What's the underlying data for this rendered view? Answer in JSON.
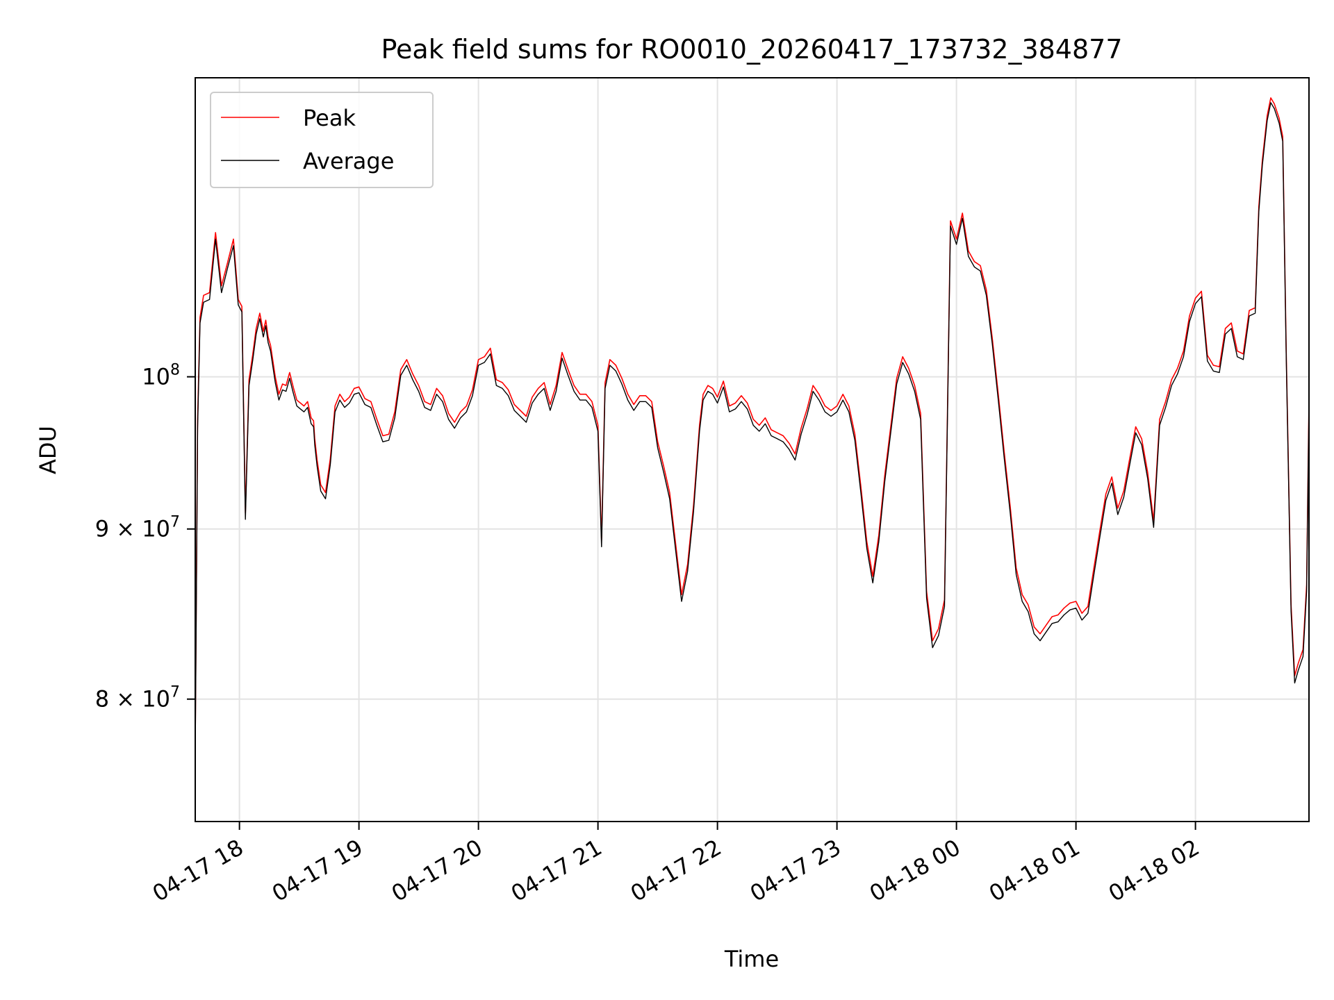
{
  "chart_data": {
    "type": "line",
    "title": "Peak field sums for RO0010_20260417_173732_384877",
    "xlabel": "Time",
    "ylabel": "ADU",
    "yscale": "log",
    "grid": true,
    "legend_position": "top-left",
    "xlim": [
      17.63,
      26.95
    ],
    "ylim": [
      73500000,
      123000000
    ],
    "x_ticks": [
      {
        "value": 18,
        "label": "04-17 18"
      },
      {
        "value": 19,
        "label": "04-17 19"
      },
      {
        "value": 20,
        "label": "04-17 20"
      },
      {
        "value": 21,
        "label": "04-17 21"
      },
      {
        "value": 22,
        "label": "04-17 22"
      },
      {
        "value": 23,
        "label": "04-17 23"
      },
      {
        "value": 24,
        "label": "04-18 00"
      },
      {
        "value": 25,
        "label": "04-18 01"
      },
      {
        "value": 26,
        "label": "04-18 02"
      }
    ],
    "y_ticks": [
      {
        "value": 80000000,
        "label": "8 × 10",
        "exp": "7"
      },
      {
        "value": 90000000,
        "label": "9 × 10",
        "exp": "7"
      },
      {
        "value": 100000000,
        "label": "10",
        "exp": "8"
      }
    ],
    "series": [
      {
        "name": "Peak",
        "color": "#ff0000",
        "x": [
          17.63,
          17.65,
          17.67,
          17.7,
          17.75,
          17.8,
          17.85,
          17.9,
          17.95,
          17.99,
          18.02,
          18.05,
          18.08,
          18.11,
          18.14,
          18.17,
          18.2,
          18.22,
          18.24,
          18.26,
          18.3,
          18.33,
          18.36,
          18.39,
          18.42,
          18.45,
          18.48,
          18.51,
          18.54,
          18.57,
          18.6,
          18.62,
          18.63,
          18.65,
          18.68,
          18.72,
          18.76,
          18.8,
          18.84,
          18.88,
          18.92,
          18.96,
          19.0,
          19.05,
          19.1,
          19.15,
          19.2,
          19.25,
          19.3,
          19.35,
          19.4,
          19.45,
          19.5,
          19.55,
          19.6,
          19.65,
          19.7,
          19.75,
          19.8,
          19.85,
          19.9,
          19.95,
          20.0,
          20.05,
          20.1,
          20.15,
          20.2,
          20.25,
          20.3,
          20.35,
          20.4,
          20.45,
          20.5,
          20.55,
          20.6,
          20.65,
          20.7,
          20.75,
          20.8,
          20.85,
          20.9,
          20.95,
          21.0,
          21.03,
          21.06,
          21.1,
          21.15,
          21.2,
          21.25,
          21.3,
          21.35,
          21.4,
          21.45,
          21.5,
          21.55,
          21.6,
          21.65,
          21.7,
          21.75,
          21.8,
          21.85,
          21.88,
          21.92,
          21.96,
          22.0,
          22.05,
          22.1,
          22.15,
          22.2,
          22.25,
          22.3,
          22.35,
          22.4,
          22.45,
          22.5,
          22.55,
          22.6,
          22.65,
          22.7,
          22.75,
          22.8,
          22.85,
          22.9,
          22.95,
          23.0,
          23.05,
          23.1,
          23.15,
          23.2,
          23.25,
          23.3,
          23.35,
          23.4,
          23.45,
          23.5,
          23.55,
          23.6,
          23.65,
          23.7,
          23.75,
          23.8,
          23.85,
          23.9,
          23.95,
          24.0,
          24.05,
          24.1,
          24.15,
          24.2,
          24.25,
          24.3,
          24.35,
          24.4,
          24.45,
          24.5,
          24.55,
          24.6,
          24.65,
          24.7,
          24.75,
          24.8,
          24.85,
          24.9,
          24.95,
          25.0,
          25.05,
          25.1,
          25.15,
          25.2,
          25.25,
          25.3,
          25.35,
          25.4,
          25.45,
          25.5,
          25.55,
          25.6,
          25.65,
          25.7,
          25.75,
          25.8,
          25.85,
          25.9,
          25.95,
          26.0,
          26.05,
          26.1,
          26.15,
          26.2,
          26.25,
          26.3,
          26.35,
          26.4,
          26.45,
          26.5,
          26.53,
          26.56,
          26.6,
          26.63,
          26.66,
          26.7,
          26.73,
          26.76,
          26.8,
          26.83,
          26.86,
          26.9,
          26.93,
          26.95
        ],
        "y": [
          77500000,
          97000000,
          104200000,
          105800000,
          106000000,
          110500000,
          106500000,
          108200000,
          110000000,
          105500000,
          105000000,
          91000000,
          99800000,
          101500000,
          103400000,
          104500000,
          103200000,
          104000000,
          102800000,
          102200000,
          100000000,
          98800000,
          99500000,
          99400000,
          100300000,
          99300000,
          98400000,
          98200000,
          98000000,
          98300000,
          97200000,
          97000000,
          95800000,
          94400000,
          92800000,
          92300000,
          94500000,
          98000000,
          98800000,
          98300000,
          98600000,
          99200000,
          99300000,
          98500000,
          98300000,
          97100000,
          96000000,
          96100000,
          97600000,
          100500000,
          101200000,
          100200000,
          99400000,
          98300000,
          98100000,
          99200000,
          98700000,
          97500000,
          96900000,
          97600000,
          98000000,
          99100000,
          101200000,
          101400000,
          102000000,
          99800000,
          99600000,
          99100000,
          98100000,
          97700000,
          97300000,
          98600000,
          99200000,
          99600000,
          98100000,
          99400000,
          101700000,
          100500000,
          99400000,
          98800000,
          98800000,
          98300000,
          96700000,
          89300000,
          99600000,
          101200000,
          100800000,
          99900000,
          98800000,
          98100000,
          98700000,
          98700000,
          98300000,
          95600000,
          94000000,
          92300000,
          89100000,
          86000000,
          87800000,
          91500000,
          96700000,
          98800000,
          99400000,
          99200000,
          98600000,
          99700000,
          98000000,
          98200000,
          98700000,
          98200000,
          97100000,
          96700000,
          97200000,
          96400000,
          96200000,
          96000000,
          95500000,
          94800000,
          96500000,
          97800000,
          99400000,
          98800000,
          98000000,
          97700000,
          98000000,
          98800000,
          98000000,
          96100000,
          92700000,
          89200000,
          87100000,
          89600000,
          93400000,
          96600000,
          99900000,
          101400000,
          100600000,
          99400000,
          97500000,
          86200000,
          83300000,
          84000000,
          85700000,
          111400000,
          110000000,
          112000000,
          109100000,
          108300000,
          108000000,
          106200000,
          102700000,
          98800000,
          94900000,
          91400000,
          87600000,
          86000000,
          85400000,
          84100000,
          83700000,
          84200000,
          84700000,
          84800000,
          85200000,
          85500000,
          85600000,
          84900000,
          85300000,
          87600000,
          89900000,
          92200000,
          93300000,
          91300000,
          92400000,
          94500000,
          96600000,
          95800000,
          93600000,
          90500000,
          97100000,
          98300000,
          99800000,
          100600000,
          101800000,
          104300000,
          105600000,
          106100000,
          101500000,
          100800000,
          100700000,
          103400000,
          103800000,
          101800000,
          101600000,
          104700000,
          104900000,
          112500000,
          116200000,
          119800000,
          121300000,
          120800000,
          119600000,
          118100000,
          101600000,
          85400000,
          81300000,
          82000000,
          82800000,
          86600000,
          98400000
        ]
      },
      {
        "name": "Average",
        "color": "#000000",
        "x": [
          17.63,
          17.65,
          17.67,
          17.7,
          17.75,
          17.8,
          17.85,
          17.9,
          17.95,
          17.99,
          18.02,
          18.05,
          18.08,
          18.11,
          18.14,
          18.17,
          18.2,
          18.22,
          18.24,
          18.26,
          18.3,
          18.33,
          18.36,
          18.39,
          18.42,
          18.45,
          18.48,
          18.51,
          18.54,
          18.57,
          18.6,
          18.62,
          18.63,
          18.65,
          18.68,
          18.72,
          18.76,
          18.8,
          18.84,
          18.88,
          18.92,
          18.96,
          19.0,
          19.05,
          19.1,
          19.15,
          19.2,
          19.25,
          19.3,
          19.35,
          19.4,
          19.45,
          19.5,
          19.55,
          19.6,
          19.65,
          19.7,
          19.75,
          19.8,
          19.85,
          19.9,
          19.95,
          20.0,
          20.05,
          20.1,
          20.15,
          20.2,
          20.25,
          20.3,
          20.35,
          20.4,
          20.45,
          20.5,
          20.55,
          20.6,
          20.65,
          20.7,
          20.75,
          20.8,
          20.85,
          20.9,
          20.95,
          21.0,
          21.03,
          21.06,
          21.1,
          21.15,
          21.2,
          21.25,
          21.3,
          21.35,
          21.4,
          21.45,
          21.5,
          21.55,
          21.6,
          21.65,
          21.7,
          21.75,
          21.8,
          21.85,
          21.88,
          21.92,
          21.96,
          22.0,
          22.05,
          22.1,
          22.15,
          22.2,
          22.25,
          22.3,
          22.35,
          22.4,
          22.45,
          22.5,
          22.55,
          22.6,
          22.65,
          22.7,
          22.75,
          22.8,
          22.85,
          22.9,
          22.95,
          23.0,
          23.05,
          23.1,
          23.15,
          23.2,
          23.25,
          23.3,
          23.35,
          23.4,
          23.45,
          23.5,
          23.55,
          23.6,
          23.65,
          23.7,
          23.75,
          23.8,
          23.85,
          23.9,
          23.95,
          24.0,
          24.05,
          24.1,
          24.15,
          24.2,
          24.25,
          24.3,
          24.35,
          24.4,
          24.45,
          24.5,
          24.55,
          24.6,
          24.65,
          24.7,
          24.75,
          24.8,
          24.85,
          24.9,
          24.95,
          25.0,
          25.05,
          25.1,
          25.15,
          25.2,
          25.25,
          25.3,
          25.35,
          25.4,
          25.45,
          25.5,
          25.55,
          25.6,
          25.65,
          25.7,
          25.75,
          25.8,
          25.85,
          25.9,
          25.95,
          26.0,
          26.05,
          26.1,
          26.15,
          26.2,
          26.25,
          26.3,
          26.35,
          26.4,
          26.45,
          26.5,
          26.53,
          26.56,
          26.6,
          26.63,
          26.66,
          26.7,
          26.73,
          26.76,
          26.8,
          26.83,
          26.86,
          26.9,
          26.93,
          26.95
        ],
        "y": [
          77000000,
          96500000,
          103800000,
          105300000,
          105500000,
          110000000,
          106000000,
          107800000,
          109500000,
          105100000,
          104600000,
          90600000,
          99400000,
          101100000,
          103000000,
          104100000,
          102800000,
          103600000,
          102400000,
          101800000,
          99600000,
          98400000,
          99100000,
          99000000,
          99900000,
          98900000,
          98000000,
          97800000,
          97600000,
          97900000,
          96800000,
          96600000,
          95400000,
          94000000,
          92400000,
          91900000,
          94100000,
          97600000,
          98400000,
          97900000,
          98200000,
          98800000,
          98900000,
          98100000,
          97900000,
          96700000,
          95600000,
          95700000,
          97200000,
          100100000,
          100800000,
          99800000,
          99000000,
          97900000,
          97700000,
          98800000,
          98300000,
          97100000,
          96500000,
          97200000,
          97600000,
          98700000,
          100800000,
          101000000,
          101600000,
          99400000,
          99200000,
          98700000,
          97700000,
          97300000,
          96900000,
          98200000,
          98800000,
          99200000,
          97700000,
          99000000,
          101300000,
          100100000,
          99000000,
          98400000,
          98400000,
          97900000,
          96300000,
          88900000,
          99200000,
          100800000,
          100400000,
          99500000,
          98400000,
          97700000,
          98300000,
          98300000,
          97900000,
          95200000,
          93600000,
          91900000,
          88700000,
          85600000,
          87400000,
          91100000,
          96300000,
          98400000,
          99000000,
          98800000,
          98200000,
          99300000,
          97600000,
          97800000,
          98300000,
          97800000,
          96700000,
          96300000,
          96800000,
          96000000,
          95800000,
          95600000,
          95100000,
          94400000,
          96100000,
          97400000,
          99000000,
          98400000,
          97600000,
          97300000,
          97600000,
          98400000,
          97600000,
          95700000,
          92300000,
          88800000,
          86700000,
          89200000,
          93000000,
          96200000,
          99500000,
          101000000,
          100200000,
          99000000,
          97100000,
          85800000,
          82900000,
          83600000,
          85300000,
          111000000,
          109600000,
          111600000,
          108700000,
          107900000,
          107600000,
          105800000,
          102300000,
          98400000,
          94500000,
          91000000,
          87200000,
          85600000,
          85000000,
          83700000,
          83300000,
          83800000,
          84300000,
          84400000,
          84800000,
          85100000,
          85200000,
          84500000,
          84900000,
          87200000,
          89500000,
          91800000,
          92900000,
          90900000,
          92000000,
          94100000,
          96200000,
          95400000,
          93200000,
          90100000,
          96700000,
          97900000,
          99400000,
          100200000,
          101400000,
          103900000,
          105200000,
          105700000,
          101100000,
          100400000,
          100300000,
          103000000,
          103400000,
          101400000,
          101200000,
          104300000,
          104500000,
          112100000,
          115800000,
          119400000,
          120900000,
          120400000,
          119200000,
          117700000,
          101200000,
          85000000,
          80900000,
          81600000,
          82400000,
          86200000,
          98000000
        ]
      }
    ]
  }
}
